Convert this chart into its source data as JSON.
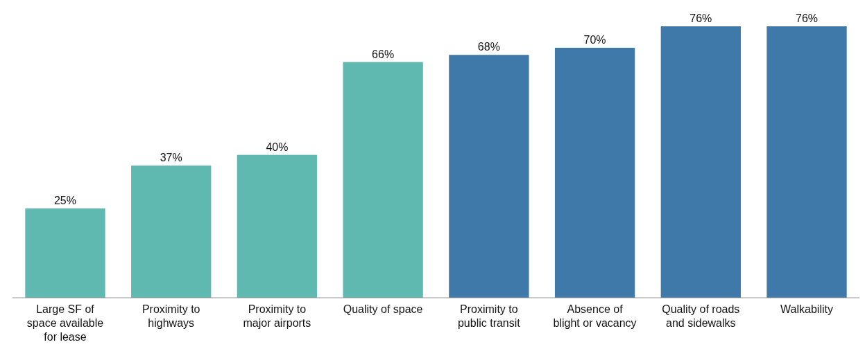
{
  "chart_data": {
    "type": "bar",
    "categories": [
      "Large SF of\nspace available\nfor lease",
      "Proximity to\nhighways",
      "Proximity to\nmajor airports",
      "Quality of space",
      "Proximity to\npublic transit",
      "Absence of\nblight or vacancy",
      "Quality of roads\nand sidewalks",
      "Walkability"
    ],
    "values": [
      25,
      37,
      40,
      66,
      68,
      70,
      76,
      76
    ],
    "colors": [
      "#5fb9b1",
      "#5fb9b1",
      "#5fb9b1",
      "#5fb9b1",
      "#3e79a9",
      "#3e79a9",
      "#3e79a9",
      "#3e79a9"
    ],
    "value_labels": [
      "25%",
      "37%",
      "40%",
      "66%",
      "68%",
      "70%",
      "76%",
      "76%"
    ]
  }
}
